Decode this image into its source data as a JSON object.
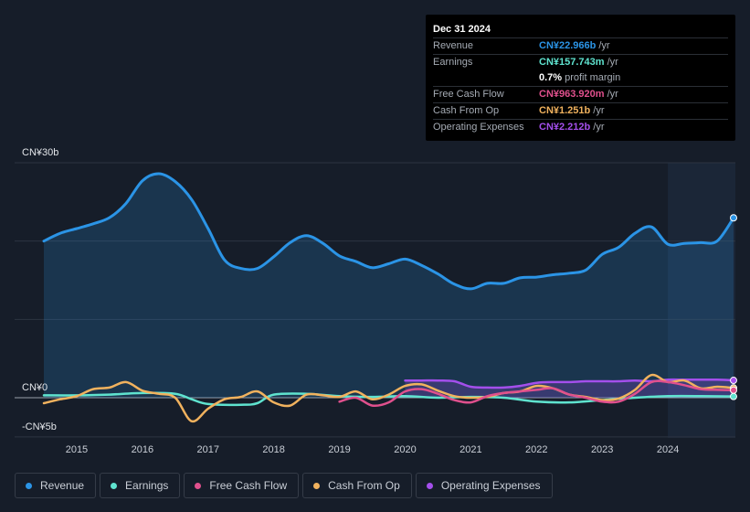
{
  "tooltip": {
    "date": "Dec 31 2024",
    "rows": [
      {
        "label": "Revenue",
        "value": "CN¥22.966b",
        "unit": "/yr",
        "color": "#2b94e6"
      },
      {
        "label": "Earnings",
        "value": "CN¥157.743m",
        "unit": "/yr",
        "color": "#5fe3cf"
      },
      {
        "label": "",
        "value": "0.7%",
        "unit": "profit margin",
        "color": "#ffffff"
      },
      {
        "label": "Free Cash Flow",
        "value": "CN¥963.920m",
        "unit": "/yr",
        "color": "#e0508d"
      },
      {
        "label": "Cash From Op",
        "value": "CN¥1.251b",
        "unit": "/yr",
        "color": "#f1b25e"
      },
      {
        "label": "Operating Expenses",
        "value": "CN¥2.212b",
        "unit": "/yr",
        "color": "#a44fec"
      }
    ]
  },
  "legend": [
    {
      "label": "Revenue",
      "color": "#2b94e6"
    },
    {
      "label": "Earnings",
      "color": "#5fe3cf"
    },
    {
      "label": "Free Cash Flow",
      "color": "#e0508d"
    },
    {
      "label": "Cash From Op",
      "color": "#f1b25e"
    },
    {
      "label": "Operating Expenses",
      "color": "#a44fec"
    }
  ],
  "chart_data": {
    "type": "line",
    "title": "",
    "xlabel": "",
    "ylabel": "",
    "y_labels": {
      "top": "CN¥30b",
      "zero": "CN¥0",
      "bottom": "-CN¥5b"
    },
    "ylim": [
      -5,
      30
    ],
    "xlim": [
      2014.45,
      2025.0
    ],
    "x_ticks": [
      2015,
      2016,
      2017,
      2018,
      2019,
      2020,
      2021,
      2022,
      2023,
      2024
    ],
    "x_tick_labels": [
      "2015",
      "2016",
      "2017",
      "2018",
      "2019",
      "2020",
      "2021",
      "2022",
      "2023",
      "2024"
    ],
    "highlight_from": 2024.0,
    "series": [
      {
        "name": "Revenue",
        "color": "#2b94e6",
        "fill": true,
        "x": [
          2014.5,
          2014.75,
          2015.0,
          2015.25,
          2015.5,
          2015.75,
          2016.0,
          2016.25,
          2016.5,
          2016.75,
          2017.0,
          2017.25,
          2017.5,
          2017.75,
          2018.0,
          2018.25,
          2018.5,
          2018.75,
          2019.0,
          2019.25,
          2019.5,
          2019.75,
          2020.0,
          2020.25,
          2020.5,
          2020.75,
          2021.0,
          2021.25,
          2021.5,
          2021.75,
          2022.0,
          2022.25,
          2022.5,
          2022.75,
          2023.0,
          2023.25,
          2023.5,
          2023.75,
          2024.0,
          2024.25,
          2024.5,
          2024.75,
          2025.0
        ],
        "values": [
          20.0,
          21.0,
          21.6,
          22.2,
          23.0,
          24.8,
          27.7,
          28.6,
          27.6,
          25.3,
          21.6,
          17.6,
          16.5,
          16.5,
          18.0,
          19.8,
          20.7,
          19.7,
          18.1,
          17.4,
          16.6,
          17.1,
          17.7,
          16.9,
          15.8,
          14.5,
          13.9,
          14.6,
          14.6,
          15.3,
          15.4,
          15.7,
          15.9,
          16.3,
          18.3,
          19.2,
          21.0,
          21.8,
          19.6,
          19.7,
          19.8,
          20.0,
          22.966
        ]
      },
      {
        "name": "Earnings",
        "color": "#5fe3cf",
        "fill": false,
        "x": [
          2014.5,
          2015.0,
          2015.5,
          2016.0,
          2016.5,
          2016.75,
          2017.0,
          2017.5,
          2017.75,
          2018.0,
          2018.5,
          2019.0,
          2019.5,
          2020.0,
          2020.5,
          2021.0,
          2021.5,
          2022.0,
          2022.5,
          2023.0,
          2023.5,
          2024.0,
          2024.5,
          2025.0
        ],
        "values": [
          0.3,
          0.3,
          0.4,
          0.6,
          0.5,
          -0.2,
          -0.8,
          -0.9,
          -0.7,
          0.4,
          0.5,
          0.2,
          0.1,
          0.2,
          0.0,
          0.1,
          0.0,
          -0.5,
          -0.6,
          -0.3,
          0.0,
          0.2,
          0.2,
          0.158
        ]
      },
      {
        "name": "Free Cash Flow",
        "color": "#e0508d",
        "fill": false,
        "x": [
          2019.0,
          2019.25,
          2019.5,
          2019.75,
          2020.0,
          2020.25,
          2020.5,
          2020.75,
          2021.0,
          2021.25,
          2021.5,
          2021.75,
          2022.0,
          2022.25,
          2022.5,
          2022.75,
          2023.0,
          2023.25,
          2023.5,
          2023.75,
          2024.0,
          2024.25,
          2024.5,
          2024.75,
          2025.0
        ],
        "values": [
          -0.5,
          0.0,
          -1.0,
          -0.6,
          0.8,
          1.1,
          0.5,
          -0.3,
          -0.6,
          0.2,
          0.6,
          0.8,
          1.0,
          1.2,
          0.4,
          0.0,
          -0.5,
          -0.5,
          0.5,
          2.0,
          2.0,
          1.6,
          1.1,
          1.0,
          0.964
        ]
      },
      {
        "name": "Cash From Op",
        "color": "#f1b25e",
        "fill": false,
        "x": [
          2014.5,
          2014.75,
          2015.0,
          2015.25,
          2015.5,
          2015.75,
          2016.0,
          2016.25,
          2016.5,
          2016.75,
          2017.0,
          2017.25,
          2017.5,
          2017.75,
          2018.0,
          2018.25,
          2018.5,
          2018.75,
          2019.0,
          2019.25,
          2019.5,
          2019.75,
          2020.0,
          2020.25,
          2020.5,
          2020.75,
          2021.0,
          2021.25,
          2021.5,
          2021.75,
          2022.0,
          2022.25,
          2022.5,
          2022.75,
          2023.0,
          2023.25,
          2023.5,
          2023.75,
          2024.0,
          2024.25,
          2024.5,
          2024.75,
          2025.0
        ],
        "values": [
          -0.7,
          -0.2,
          0.2,
          1.1,
          1.3,
          2.0,
          0.9,
          0.5,
          0.0,
          -3.0,
          -1.4,
          -0.2,
          0.1,
          0.8,
          -0.6,
          -1.0,
          0.4,
          0.3,
          0.1,
          0.8,
          -0.2,
          0.4,
          1.5,
          1.7,
          0.9,
          0.2,
          0.0,
          0.1,
          0.6,
          0.8,
          1.5,
          1.2,
          0.4,
          0.1,
          -0.3,
          -0.1,
          1.0,
          2.9,
          2.0,
          2.2,
          1.2,
          1.4,
          1.251
        ]
      },
      {
        "name": "Operating Expenses",
        "color": "#a44fec",
        "fill": true,
        "x": [
          2020.0,
          2020.25,
          2020.5,
          2020.75,
          2021.0,
          2021.25,
          2021.5,
          2021.75,
          2022.0,
          2022.25,
          2022.5,
          2022.75,
          2023.0,
          2023.25,
          2023.5,
          2023.75,
          2024.0,
          2024.25,
          2024.5,
          2024.75,
          2025.0
        ],
        "values": [
          2.2,
          2.2,
          2.2,
          2.1,
          1.4,
          1.3,
          1.3,
          1.5,
          1.9,
          2.0,
          2.0,
          2.1,
          2.1,
          2.1,
          2.2,
          2.1,
          2.3,
          2.3,
          2.3,
          2.3,
          2.212
        ]
      }
    ]
  }
}
